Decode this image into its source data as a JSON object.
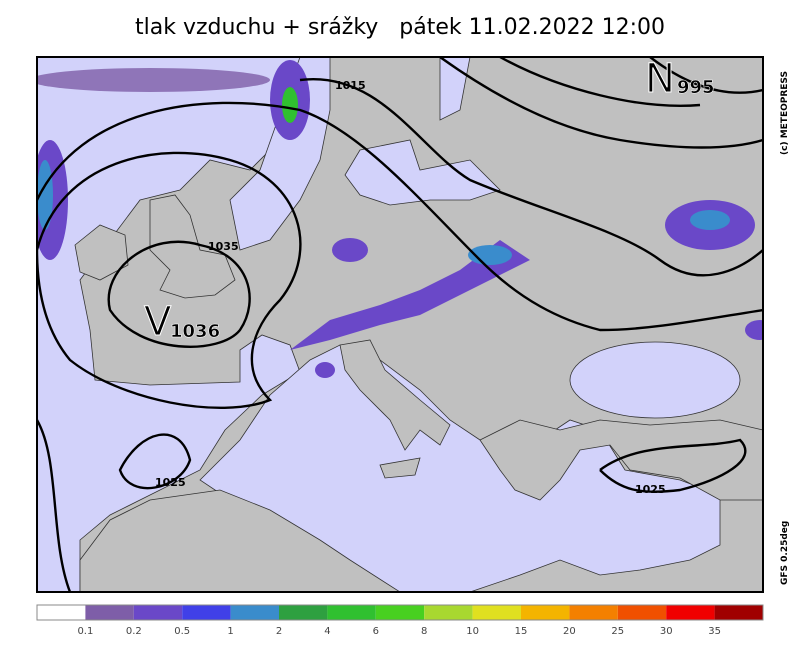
{
  "title": "tlak vzduchu + srážky   pátek 11.02.2022 12:00",
  "copyright": "(c) METEOPRESS",
  "model": "GFS 0.25deg",
  "pressure_centers": [
    {
      "letter": "V",
      "value": "1036"
    },
    {
      "letter": "N",
      "value": "995"
    }
  ],
  "isobar_labels": [
    "1015",
    "1035",
    "1025",
    "1025"
  ],
  "legend": {
    "labels": [
      0.1,
      0.2,
      0.5,
      1,
      2,
      4,
      6,
      8,
      10,
      15,
      20,
      25,
      30,
      35
    ],
    "colors": [
      "#ffffff",
      "#7e5ea8",
      "#6a48c8",
      "#4040e8",
      "#3a8ccc",
      "#2ea040",
      "#30c030",
      "#48d020",
      "#a8d830",
      "#e0e020",
      "#f4b400",
      "#f48000",
      "#f05000",
      "#f00000",
      "#a00000"
    ]
  }
}
